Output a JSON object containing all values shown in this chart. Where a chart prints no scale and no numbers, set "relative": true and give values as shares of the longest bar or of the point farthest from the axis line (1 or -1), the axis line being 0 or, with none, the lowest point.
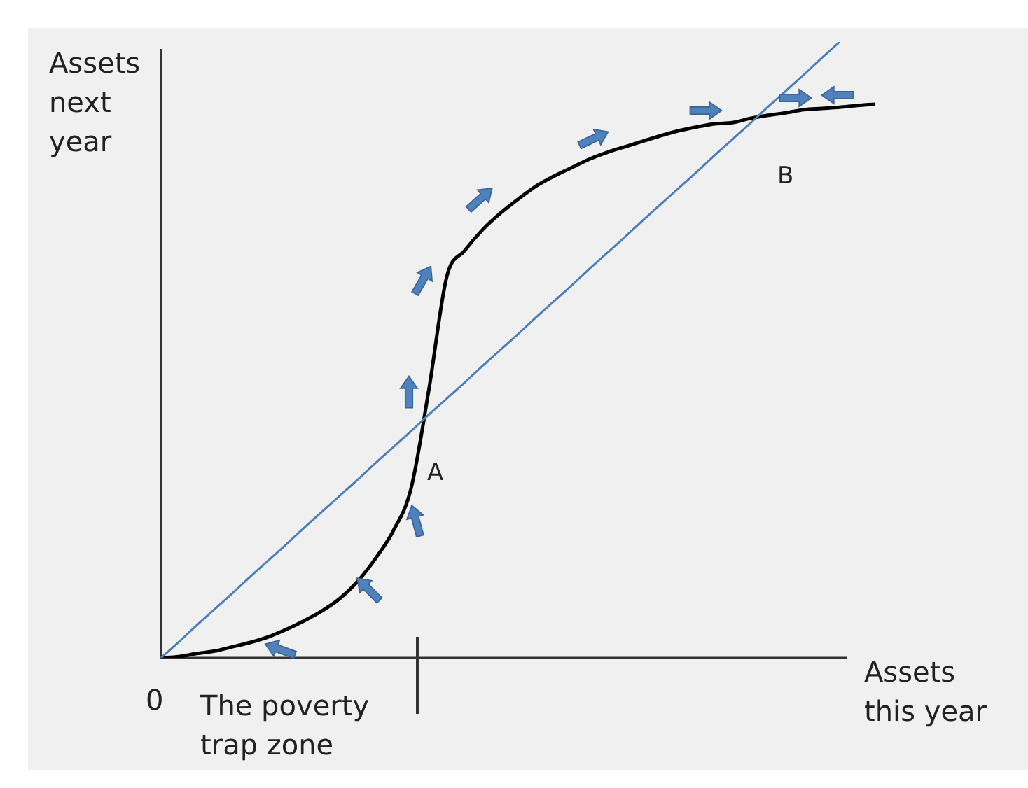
{
  "chart_data": {
    "type": "line",
    "relative": true,
    "xlabel": "Assets this year",
    "ylabel": "Assets next year",
    "marker": "none",
    "categories": [
      null,
      null,
      null,
      null,
      null,
      null,
      null,
      null,
      null,
      null,
      null,
      null,
      null,
      null,
      null,
      null,
      null,
      null,
      null,
      null,
      null,
      null,
      null,
      null,
      null,
      null,
      null,
      null,
      null,
      null,
      null,
      null,
      null,
      null,
      null,
      null,
      null,
      null,
      null,
      null,
      null,
      null,
      null,
      null,
      null,
      null,
      null,
      null,
      null
    ],
    "series": [
      {
        "color": "#4a7ebb",
        "values": [
          0,
          0.026,
          0.053,
          0.079,
          0.105,
          0.132,
          0.158,
          0.184,
          0.211,
          0.237,
          0.263,
          0.289,
          0.316,
          0.342,
          0.368,
          0.395,
          0.421,
          0.447,
          0.474,
          0.5,
          0.526,
          0.553,
          0.579,
          0.605,
          0.632,
          0.658,
          0.684,
          0.711,
          0.737,
          0.763,
          0.789,
          0.816,
          0.842,
          0.868,
          0.895,
          0.921,
          0.947,
          0.974,
          1,
          null,
          null,
          null,
          null,
          null,
          null,
          null,
          null,
          null,
          null
        ]
      },
      {
        "color": "#000000",
        "values": [
          0,
          0.002,
          0.007,
          0.011,
          0.018,
          0.025,
          0.034,
          0.046,
          0.06,
          0.076,
          0.096,
          0.124,
          0.161,
          0.206,
          0.275,
          0.436,
          0.619,
          0.661,
          0.695,
          0.722,
          0.745,
          0.766,
          0.782,
          0.796,
          0.81,
          0.821,
          0.83,
          0.839,
          0.848,
          0.856,
          0.862,
          0.867,
          0.869,
          0.876,
          0.881,
          0.885,
          0.89,
          0.892,
          0.894,
          0.897,
          0.899,
          null,
          null,
          null,
          null,
          null,
          null,
          null,
          null
        ]
      }
    ],
    "annotations": [
      "0",
      "A",
      "B",
      "The poverty trap zone"
    ]
  }
}
